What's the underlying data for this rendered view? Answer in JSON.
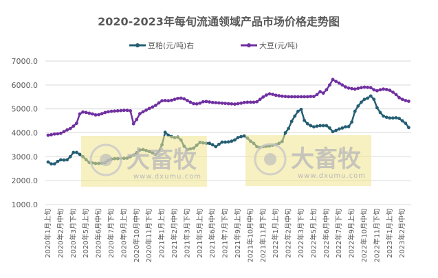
{
  "chart_data": {
    "type": "line",
    "title": "2020-2023年每旬流通领域产品市场价格走势图",
    "ylim": [
      1000,
      7000
    ],
    "y_ticks": [
      "1000.0",
      "2000.0",
      "3000.0",
      "4000.0",
      "5000.0",
      "6000.0",
      "7000.0"
    ],
    "y_tick_values": [
      1000,
      2000,
      3000,
      4000,
      5000,
      6000,
      7000
    ],
    "grid": true,
    "legend_position": "top",
    "x_tick_every": 4,
    "x_tick_labels": [
      "2020年1月上旬",
      "2020年2月中旬",
      "2020年3月下旬",
      "2020年5月上旬",
      "2020年6月中旬",
      "2020年7月下旬",
      "2020年9月上旬",
      "2020年10月中旬",
      "2020年11月下旬",
      "2021年1月上旬",
      "2021年2月中旬",
      "2021年3月下旬",
      "2021年5月上旬",
      "2021年6月中旬",
      "2021年7月下旬",
      "2021年9月上旬",
      "2021年10月中旬",
      "2021年11月下旬",
      "2022年1月上旬",
      "2022年2月中旬",
      "2022年3月下旬",
      "2022年5月上旬",
      "2022年6月中旬",
      "2022年7月下旬",
      "2022年9月上旬",
      "2022年10月中旬",
      "2022年11月下旬",
      "2023年1月上旬",
      "2023年2月中旬"
    ],
    "series": [
      {
        "name": "豆粕(元/吨)右",
        "color": "#255e73",
        "values": [
          2780,
          2700,
          2700,
          2800,
          2870,
          2860,
          2870,
          3000,
          3180,
          3180,
          3100,
          3000,
          2880,
          2760,
          2740,
          2720,
          2720,
          2730,
          2750,
          2850,
          2900,
          2920,
          2920,
          2930,
          2930,
          2940,
          3000,
          3070,
          3170,
          3280,
          3300,
          3260,
          3220,
          3160,
          3100,
          3230,
          3500,
          4020,
          3900,
          3840,
          3800,
          3820,
          3700,
          3440,
          3300,
          3330,
          3360,
          3480,
          3600,
          3580,
          3560,
          3560,
          3500,
          3420,
          3520,
          3610,
          3610,
          3620,
          3650,
          3700,
          3800,
          3840,
          3870,
          3780,
          3650,
          3560,
          3420,
          3380,
          3420,
          3440,
          3450,
          3480,
          3500,
          3560,
          3640,
          4000,
          4180,
          4480,
          4700,
          4900,
          4980,
          4520,
          4380,
          4300,
          4250,
          4280,
          4300,
          4300,
          4300,
          4200,
          4050,
          4100,
          4160,
          4200,
          4250,
          4260,
          4450,
          4900,
          5120,
          5280,
          5400,
          5450,
          5540,
          5400,
          5050,
          4850,
          4700,
          4650,
          4620,
          4620,
          4630,
          4600,
          4500,
          4400,
          4220
        ]
      },
      {
        "name": "大豆(元/吨)",
        "color": "#7030a0",
        "values": [
          3900,
          3920,
          3950,
          3960,
          3980,
          4050,
          4120,
          4180,
          4280,
          4400,
          4790,
          4870,
          4850,
          4820,
          4790,
          4750,
          4760,
          4800,
          4850,
          4880,
          4900,
          4910,
          4920,
          4930,
          4940,
          4940,
          4920,
          4380,
          4560,
          4800,
          4880,
          4950,
          5020,
          5080,
          5150,
          5250,
          5340,
          5350,
          5340,
          5360,
          5400,
          5440,
          5450,
          5420,
          5350,
          5280,
          5220,
          5210,
          5240,
          5300,
          5310,
          5290,
          5270,
          5260,
          5250,
          5240,
          5230,
          5220,
          5210,
          5200,
          5220,
          5240,
          5270,
          5280,
          5280,
          5280,
          5300,
          5400,
          5500,
          5580,
          5630,
          5610,
          5570,
          5550,
          5530,
          5520,
          5510,
          5510,
          5510,
          5510,
          5510,
          5510,
          5510,
          5520,
          5520,
          5600,
          5720,
          5660,
          5800,
          6000,
          6230,
          6150,
          6080,
          6000,
          5920,
          5870,
          5850,
          5830,
          5860,
          5890,
          5910,
          5900,
          5890,
          5800,
          5760,
          5800,
          5830,
          5810,
          5780,
          5700,
          5600,
          5470,
          5400,
          5350,
          5320
        ]
      }
    ]
  },
  "watermark": {
    "brand": "大畜牧",
    "url": "www.dxumu.com"
  }
}
